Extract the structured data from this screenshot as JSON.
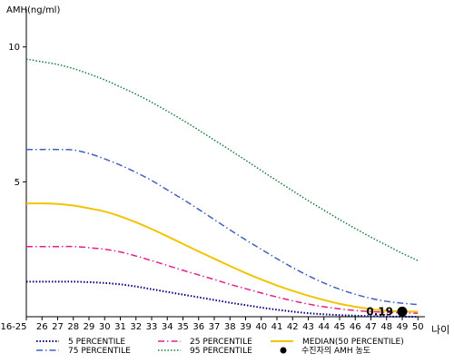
{
  "chart_data": {
    "type": "line",
    "ylabel": "AMH(ng/ml)",
    "xlabel": "나이",
    "categories": [
      "16-25",
      "26",
      "27",
      "28",
      "29",
      "30",
      "31",
      "32",
      "33",
      "34",
      "35",
      "36",
      "37",
      "38",
      "39",
      "40",
      "41",
      "42",
      "43",
      "44",
      "45",
      "46",
      "47",
      "48",
      "49",
      "50"
    ],
    "yticks": [
      5,
      10
    ],
    "ylim": [
      0,
      11
    ],
    "grid": false,
    "legend_position": "bottom",
    "series": [
      {
        "key": "p5",
        "name": "5 PERCENTILE",
        "color": "#000080",
        "dash": "1.5,2",
        "width": 2,
        "values": [
          1.3,
          1.3,
          1.3,
          1.3,
          1.28,
          1.25,
          1.2,
          1.12,
          1.02,
          0.92,
          0.82,
          0.72,
          0.62,
          0.52,
          0.43,
          0.34,
          0.26,
          0.19,
          0.13,
          0.09,
          0.06,
          0.04,
          0.02,
          0.01,
          0.0,
          0.0
        ]
      },
      {
        "key": "p25",
        "name": "25 PERCENTILE",
        "color": "#e0208e",
        "dash": "7,3,1.5,3",
        "width": 1.5,
        "values": [
          2.6,
          2.6,
          2.6,
          2.6,
          2.56,
          2.5,
          2.4,
          2.25,
          2.08,
          1.9,
          1.72,
          1.55,
          1.38,
          1.2,
          1.04,
          0.88,
          0.73,
          0.59,
          0.47,
          0.37,
          0.29,
          0.23,
          0.19,
          0.16,
          0.14,
          0.13
        ]
      },
      {
        "key": "median",
        "name": "MEDIAN(50 PERCENTILE)",
        "color": "#f2c400",
        "dash": "",
        "width": 2,
        "values": [
          4.2,
          4.2,
          4.18,
          4.12,
          4.02,
          3.9,
          3.72,
          3.5,
          3.25,
          2.98,
          2.7,
          2.42,
          2.15,
          1.88,
          1.62,
          1.38,
          1.16,
          0.96,
          0.78,
          0.62,
          0.48,
          0.37,
          0.28,
          0.22,
          0.19,
          0.19
        ]
      },
      {
        "key": "p75",
        "name": "75 PERCENTILE",
        "color": "#4060c0",
        "dash": "7,3,1.5,3",
        "width": 1.5,
        "values": [
          6.2,
          6.2,
          6.2,
          6.18,
          6.05,
          5.85,
          5.62,
          5.35,
          5.05,
          4.7,
          4.35,
          3.98,
          3.6,
          3.22,
          2.85,
          2.5,
          2.15,
          1.82,
          1.52,
          1.25,
          1.02,
          0.83,
          0.68,
          0.57,
          0.5,
          0.45
        ]
      },
      {
        "key": "p95",
        "name": "95 PERCENTILE",
        "color": "#1a7a3a",
        "dash": "1.5,2",
        "width": 1.5,
        "values": [
          9.55,
          9.45,
          9.35,
          9.2,
          9.0,
          8.78,
          8.52,
          8.25,
          7.95,
          7.62,
          7.28,
          6.92,
          6.55,
          6.18,
          5.8,
          5.42,
          5.04,
          4.67,
          4.3,
          3.95,
          3.6,
          3.27,
          2.95,
          2.65,
          2.35,
          2.08
        ]
      }
    ],
    "points": [
      {
        "key": "patient",
        "name": "수진자의 AMH 농도",
        "x": "49",
        "y": 0.19,
        "label": "0.19",
        "color": "#000000"
      }
    ]
  }
}
